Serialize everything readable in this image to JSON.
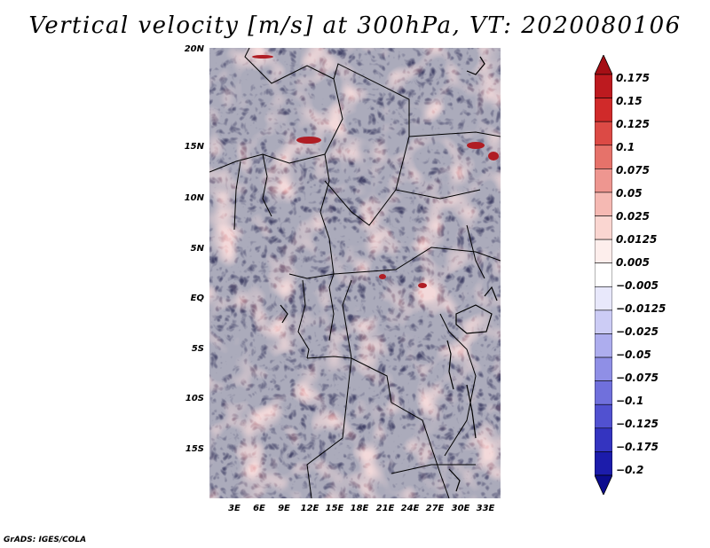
{
  "title": "Vertical velocity [m/s] at 300hPa, VT: 2020080106",
  "map": {
    "variable": "Vertical velocity",
    "units": "m/s",
    "level": "300hPa",
    "valid_time": "2020080106",
    "lat_ticks": [
      "20N",
      "15N",
      "10N",
      "5N",
      "EQ",
      "5S",
      "10S",
      "15S"
    ],
    "lon_ticks": [
      "3E",
      "6E",
      "9E",
      "12E",
      "15E",
      "18E",
      "21E",
      "24E",
      "27E",
      "30E",
      "33E"
    ]
  },
  "colorbar": {
    "labels": [
      "0.175",
      "0.15",
      "0.125",
      "0.1",
      "0.075",
      "0.05",
      "0.025",
      "0.0125",
      "0.005",
      "−0.005",
      "−0.0125",
      "−0.025",
      "−0.05",
      "−0.075",
      "−0.1",
      "−0.125",
      "−0.175",
      "−0.2"
    ],
    "colors": [
      "#a50f15",
      "#bd1a1f",
      "#d02a2a",
      "#dc4a45",
      "#e6726a",
      "#ee9690",
      "#f5b9b3",
      "#fad6d1",
      "#fdeeec",
      "#ffffff",
      "#e8e8fb",
      "#ccccf5",
      "#adadee",
      "#8f8fe6",
      "#7070dc",
      "#5151d0",
      "#3434c0",
      "#1c1cab",
      "#0c0c8e"
    ]
  },
  "credit": "GrADS: IGES/COLA"
}
